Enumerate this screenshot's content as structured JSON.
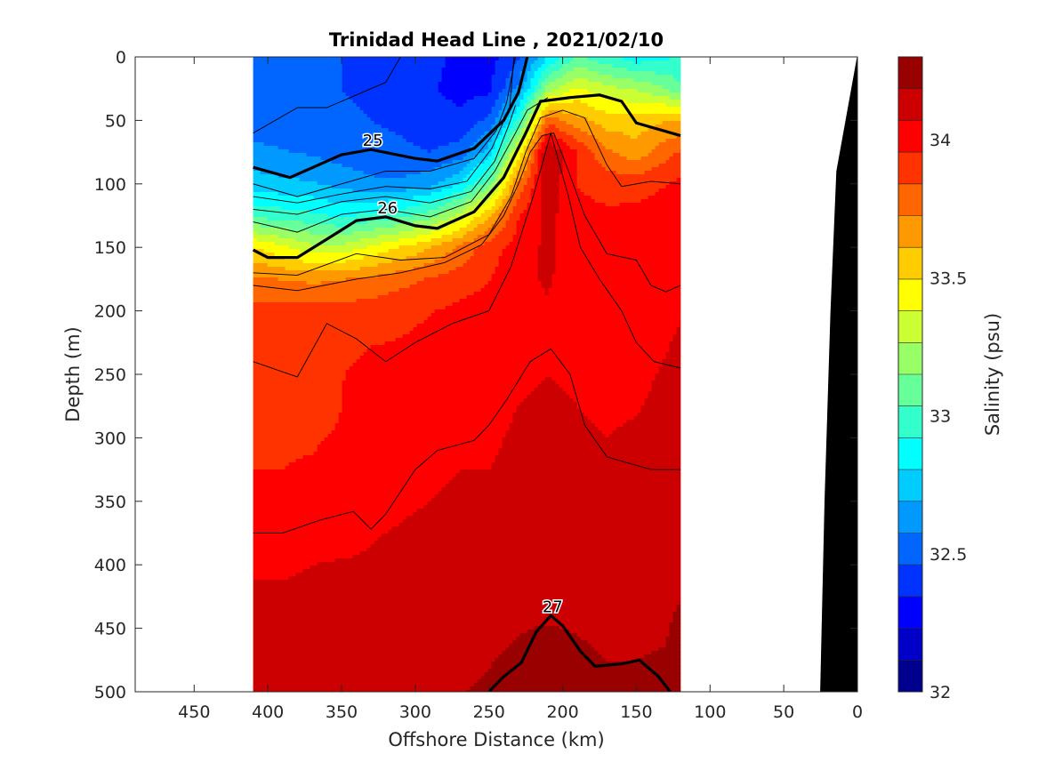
{
  "chart_data": {
    "type": "heatmap",
    "subtype": "contourf-section",
    "title": "Trinidad Head Line , 2021/02/10",
    "xlabel": "Offshore Distance (km)",
    "ylabel": "Depth (m)",
    "xlim": [
      490,
      0
    ],
    "ylim": [
      0,
      500
    ],
    "y_reversed": true,
    "x_reversed": true,
    "x_ticks": [
      450,
      400,
      350,
      300,
      250,
      200,
      150,
      100,
      50,
      0
    ],
    "y_ticks": [
      0,
      50,
      100,
      150,
      200,
      250,
      300,
      350,
      400,
      450,
      500
    ],
    "data_extent_x": [
      410,
      120
    ],
    "grid": false,
    "colorbar": {
      "label": "Salinity (psu)",
      "range": [
        32,
        34.3
      ],
      "ticks": [
        32,
        32.5,
        33,
        33.5,
        34
      ],
      "colors": [
        "#00008f",
        "#0000c8",
        "#0000ff",
        "#0033ff",
        "#0066ff",
        "#0099ff",
        "#00ccff",
        "#00ffff",
        "#33ffcc",
        "#66ff99",
        "#99ff66",
        "#ccff33",
        "#ffff00",
        "#ffcc00",
        "#ff9900",
        "#ff6600",
        "#ff3300",
        "#ff0000",
        "#cc0000",
        "#990000"
      ]
    },
    "grid_x": [
      410,
      390,
      370,
      350,
      330,
      310,
      290,
      270,
      250,
      230,
      210,
      190,
      170,
      150,
      130,
      120
    ],
    "grid_depth": [
      0,
      25,
      50,
      75,
      100,
      125,
      150,
      175,
      200,
      250,
      300,
      350,
      400,
      450,
      500
    ],
    "salinity": [
      [
        32.5,
        32.5,
        32.48,
        32.46,
        32.44,
        32.42,
        32.38,
        32.32,
        32.3,
        32.45,
        32.8,
        33.05,
        32.95,
        32.85,
        32.9,
        32.95
      ],
      [
        32.5,
        32.5,
        32.48,
        32.46,
        32.44,
        32.42,
        32.36,
        32.3,
        32.32,
        32.6,
        33.2,
        33.4,
        33.3,
        33.25,
        33.15,
        33.05
      ],
      [
        32.52,
        32.52,
        32.5,
        32.48,
        32.46,
        32.44,
        32.4,
        32.38,
        32.48,
        32.95,
        33.8,
        33.65,
        33.55,
        33.55,
        33.6,
        33.6
      ],
      [
        32.6,
        32.58,
        32.56,
        32.52,
        32.5,
        32.48,
        32.46,
        32.5,
        32.75,
        33.4,
        34.2,
        33.95,
        33.75,
        33.65,
        33.8,
        33.85
      ],
      [
        32.75,
        32.72,
        32.7,
        32.65,
        32.6,
        32.6,
        32.65,
        32.8,
        33.1,
        33.75,
        34.15,
        33.95,
        33.9,
        33.92,
        33.95,
        33.98
      ],
      [
        33.0,
        32.98,
        32.95,
        32.9,
        32.95,
        33.0,
        33.1,
        33.3,
        33.6,
        33.95,
        34.1,
        34.0,
        33.98,
        33.98,
        34.0,
        34.0
      ],
      [
        33.5,
        33.4,
        33.3,
        33.3,
        33.4,
        33.5,
        33.6,
        33.75,
        33.9,
        34.0,
        34.1,
        34.0,
        34.0,
        34.0,
        34.02,
        34.02
      ],
      [
        33.75,
        33.72,
        33.7,
        33.72,
        33.75,
        33.8,
        33.85,
        33.9,
        33.95,
        34.05,
        34.08,
        34.02,
        34.0,
        34.02,
        34.02,
        34.04
      ],
      [
        33.88,
        33.88,
        33.88,
        33.88,
        33.9,
        33.92,
        33.95,
        33.98,
        34.0,
        34.05,
        34.06,
        34.03,
        34.02,
        34.03,
        34.04,
        34.06
      ],
      [
        33.92,
        33.92,
        33.92,
        33.95,
        34.0,
        34.0,
        34.02,
        34.02,
        34.04,
        34.06,
        34.07,
        34.06,
        34.05,
        34.05,
        34.08,
        34.12
      ],
      [
        33.95,
        33.95,
        33.95,
        33.96,
        34.02,
        34.04,
        34.05,
        34.06,
        34.06,
        34.08,
        34.09,
        34.08,
        34.07,
        34.08,
        34.1,
        34.14
      ],
      [
        33.96,
        33.96,
        33.97,
        33.98,
        34.05,
        34.06,
        34.07,
        34.08,
        34.08,
        34.09,
        34.1,
        34.1,
        34.1,
        34.1,
        34.12,
        34.15
      ],
      [
        34.06,
        34.06,
        34.07,
        34.08,
        34.08,
        34.09,
        34.1,
        34.1,
        34.1,
        34.1,
        34.1,
        34.1,
        34.12,
        34.13,
        34.15,
        34.17
      ],
      [
        34.1,
        34.1,
        34.1,
        34.1,
        34.1,
        34.11,
        34.12,
        34.14,
        34.16,
        34.18,
        34.19,
        34.18,
        34.17,
        34.17,
        34.18,
        34.2
      ],
      [
        34.14,
        34.16,
        34.14,
        34.12,
        34.16,
        34.14,
        34.14,
        34.18,
        34.2,
        34.22,
        34.24,
        34.22,
        34.2,
        34.2,
        34.2,
        34.22
      ]
    ],
    "density_contours": [
      {
        "level": 25,
        "labeled": true,
        "points": [
          [
            410,
            87
          ],
          [
            385,
            95
          ],
          [
            350,
            77
          ],
          [
            330,
            73
          ],
          [
            300,
            80
          ],
          [
            285,
            82
          ],
          [
            260,
            72
          ],
          [
            240,
            50
          ],
          [
            230,
            28
          ],
          [
            225,
            5
          ],
          [
            224,
            0
          ]
        ]
      },
      {
        "level": 26,
        "labeled": true,
        "points": [
          [
            410,
            152
          ],
          [
            400,
            158
          ],
          [
            380,
            158
          ],
          [
            355,
            140
          ],
          [
            340,
            129
          ],
          [
            320,
            126
          ],
          [
            300,
            133
          ],
          [
            285,
            135
          ],
          [
            260,
            122
          ],
          [
            240,
            95
          ],
          [
            225,
            60
          ],
          [
            215,
            35
          ],
          [
            195,
            32
          ],
          [
            175,
            30
          ],
          [
            160,
            35
          ],
          [
            150,
            52
          ],
          [
            120,
            62
          ]
        ]
      },
      {
        "level": 27,
        "labeled": true,
        "points": [
          [
            250,
            500
          ],
          [
            240,
            488
          ],
          [
            228,
            477
          ],
          [
            218,
            453
          ],
          [
            208,
            440
          ],
          [
            200,
            448
          ],
          [
            188,
            468
          ],
          [
            178,
            480
          ],
          [
            160,
            478
          ],
          [
            148,
            475
          ],
          [
            135,
            488
          ],
          [
            127,
            500
          ]
        ]
      }
    ],
    "thin_contours": [
      [
        [
          410,
          60
        ],
        [
          380,
          40
        ],
        [
          360,
          40
        ],
        [
          340,
          30
        ],
        [
          320,
          20
        ],
        [
          310,
          0
        ]
      ],
      [
        [
          410,
          100
        ],
        [
          380,
          110
        ],
        [
          350,
          100
        ],
        [
          320,
          90
        ],
        [
          290,
          90
        ],
        [
          260,
          80
        ],
        [
          245,
          58
        ],
        [
          238,
          36
        ],
        [
          232,
          0
        ]
      ],
      [
        [
          410,
          110
        ],
        [
          380,
          115
        ],
        [
          350,
          108
        ],
        [
          320,
          102
        ],
        [
          290,
          104
        ],
        [
          265,
          98
        ],
        [
          248,
          72
        ],
        [
          236,
          40
        ],
        [
          233,
          0
        ]
      ],
      [
        [
          410,
          120
        ],
        [
          380,
          124
        ],
        [
          350,
          114
        ],
        [
          320,
          110
        ],
        [
          290,
          115
        ],
        [
          262,
          106
        ],
        [
          246,
          82
        ],
        [
          236,
          52
        ],
        [
          232,
          38
        ]
      ],
      [
        [
          410,
          130
        ],
        [
          380,
          138
        ],
        [
          350,
          124
        ],
        [
          320,
          120
        ],
        [
          290,
          126
        ],
        [
          262,
          114
        ],
        [
          246,
          90
        ],
        [
          232,
          60
        ],
        [
          224,
          42
        ],
        [
          210,
          32
        ]
      ],
      [
        [
          410,
          170
        ],
        [
          380,
          172
        ],
        [
          340,
          155
        ],
        [
          310,
          160
        ],
        [
          280,
          158
        ],
        [
          250,
          140
        ],
        [
          235,
          110
        ],
        [
          225,
          75
        ],
        [
          215,
          48
        ],
        [
          200,
          42
        ],
        [
          185,
          48
        ],
        [
          170,
          85
        ],
        [
          160,
          102
        ],
        [
          140,
          98
        ],
        [
          120,
          100
        ]
      ],
      [
        [
          410,
          180
        ],
        [
          380,
          184
        ],
        [
          340,
          175
        ],
        [
          310,
          170
        ],
        [
          280,
          162
        ],
        [
          255,
          148
        ],
        [
          240,
          125
        ],
        [
          230,
          100
        ],
        [
          222,
          75
        ],
        [
          214,
          62
        ],
        [
          206,
          60
        ],
        [
          196,
          90
        ],
        [
          185,
          125
        ],
        [
          170,
          155
        ],
        [
          150,
          160
        ],
        [
          140,
          180
        ],
        [
          130,
          185
        ],
        [
          120,
          180
        ]
      ],
      [
        [
          410,
          240
        ],
        [
          380,
          252
        ],
        [
          360,
          210
        ],
        [
          340,
          222
        ],
        [
          320,
          240
        ],
        [
          300,
          225
        ],
        [
          275,
          210
        ],
        [
          250,
          200
        ],
        [
          235,
          165
        ],
        [
          220,
          110
        ],
        [
          208,
          60
        ],
        [
          196,
          110
        ],
        [
          188,
          150
        ],
        [
          175,
          175
        ],
        [
          160,
          200
        ],
        [
          150,
          225
        ],
        [
          138,
          240
        ],
        [
          120,
          245
        ]
      ],
      [
        [
          410,
          375
        ],
        [
          390,
          375
        ],
        [
          365,
          365
        ],
        [
          342,
          358
        ],
        [
          330,
          372
        ],
        [
          320,
          360
        ],
        [
          300,
          325
        ],
        [
          285,
          310
        ],
        [
          260,
          302
        ],
        [
          250,
          290
        ],
        [
          238,
          270
        ],
        [
          222,
          240
        ],
        [
          208,
          230
        ],
        [
          195,
          250
        ],
        [
          185,
          290
        ],
        [
          170,
          315
        ],
        [
          155,
          320
        ],
        [
          140,
          325
        ],
        [
          120,
          325
        ]
      ]
    ],
    "bathymetry": {
      "polygon": [
        [
          0,
          0
        ],
        [
          -1,
          500
        ],
        [
          25,
          500
        ],
        [
          22,
          350
        ],
        [
          18,
          200
        ],
        [
          14,
          90
        ],
        [
          0,
          0
        ]
      ]
    }
  }
}
